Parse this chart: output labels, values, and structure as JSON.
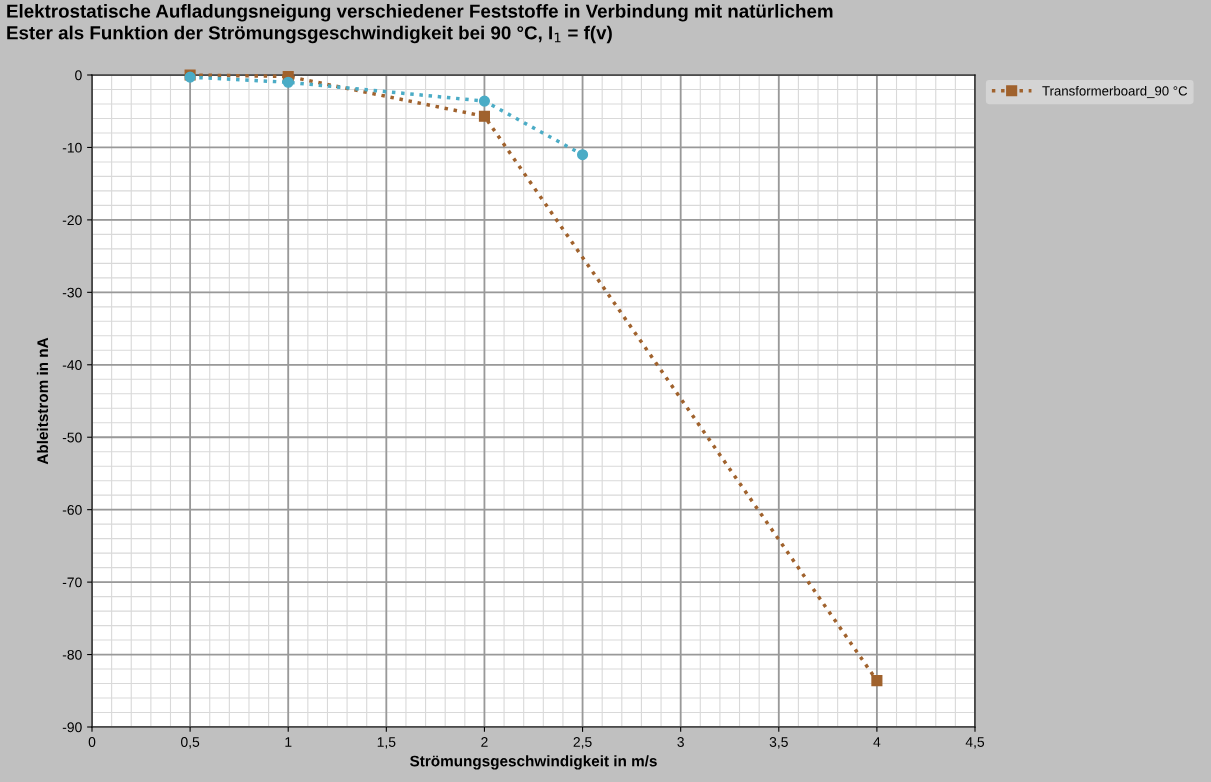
{
  "chart_data": {
    "type": "line",
    "title": "Elektrostatische Aufladungsneigung verschiedener Feststoffe in Verbindung mit natürlichem\nEster als Funktion der Strömungsgeschwindigkeit bei 90 °C, I$_{1}$ = f(v)",
    "xlabel": "Strömungsgeschwindigkeit in m/s",
    "ylabel": "Ableitstrom in nA",
    "series": [
      {
        "name": "Transformerboard_90 °C",
        "color": "#a0622d",
        "marker": "square",
        "x": [
          0.5,
          1,
          2,
          4
        ],
        "values": [
          0,
          -0.2,
          -5.7,
          -83.6
        ]
      },
      {
        "color": "#4bacc6",
        "marker": "circle",
        "x": [
          0.5,
          1,
          2,
          2.5
        ],
        "values": [
          -0.3,
          -1,
          -3.6,
          -11
        ]
      }
    ],
    "xlim": [
      0,
      4.5
    ],
    "xticks": [
      0,
      {
        "value": 0.5,
        "label": "0,5"
      },
      1,
      {
        "value": 1.5,
        "label": "1,5"
      },
      2,
      {
        "value": 2.5,
        "label": "2,5"
      },
      3,
      {
        "value": 3.5,
        "label": "3,5"
      },
      4,
      {
        "value": 4.5,
        "label": "4,5"
      }
    ],
    "ylim": [
      -90,
      0
    ],
    "yticks": [
      -90,
      -80,
      -70,
      -60,
      -50,
      -40,
      -30,
      -20,
      -10,
      0
    ],
    "grid": true,
    "legend": "top right",
    "line_style": "dotted"
  }
}
